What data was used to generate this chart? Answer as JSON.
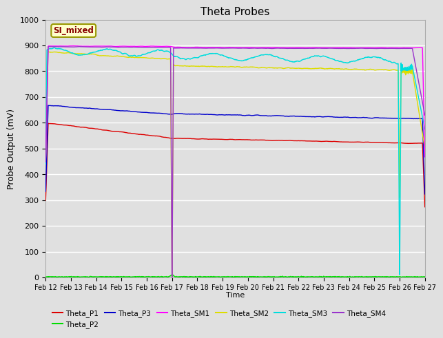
{
  "title": "Theta Probes",
  "xlabel": "Time",
  "ylabel": "Probe Output (mV)",
  "ylim": [
    0,
    1000
  ],
  "background_color": "#e0e0e0",
  "grid_color": "#f0f0f0",
  "annotation_text": "SI_mixed",
  "annotation_bg": "#ffffcc",
  "annotation_border": "#999900",
  "annotation_text_color": "#880000",
  "x_tick_labels": [
    "Feb 12",
    "Feb 13",
    "Feb 14",
    "Feb 15",
    "Feb 16",
    "Feb 17",
    "Feb 18",
    "Feb 19",
    "Feb 20",
    "Feb 21",
    "Feb 22",
    "Feb 23",
    "Feb 24",
    "Feb 25",
    "Feb 26",
    "Feb 27"
  ],
  "legend_entries": [
    {
      "label": "Theta_P1",
      "color": "#dd0000"
    },
    {
      "label": "Theta_P2",
      "color": "#00dd00"
    },
    {
      "label": "Theta_P3",
      "color": "#0000cc"
    },
    {
      "label": "Theta_SM1",
      "color": "#ff00ff"
    },
    {
      "label": "Theta_SM2",
      "color": "#dddd00"
    },
    {
      "label": "Theta_SM3",
      "color": "#00dddd"
    },
    {
      "label": "Theta_SM4",
      "color": "#9933cc"
    }
  ],
  "n_days": 15,
  "t1": 5,
  "t2": 14,
  "seed": 42
}
